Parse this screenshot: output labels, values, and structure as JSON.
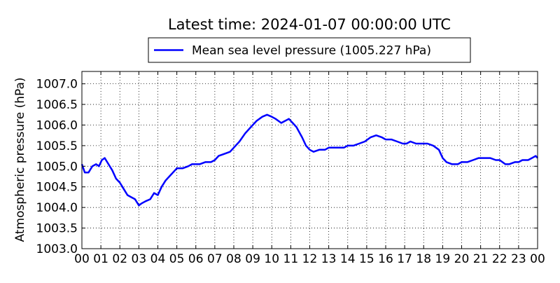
{
  "chart_data": {
    "type": "line",
    "title": "Latest time: 2024-01-07 00:00:00 UTC",
    "xlabel": "",
    "ylabel": "Atmospheric pressure (hPa)",
    "legend": {
      "label": "Mean sea level pressure (1005.227 hPa)",
      "placement": "top-center"
    },
    "grid": true,
    "xlim": [
      0,
      24
    ],
    "ylim": [
      1003.0,
      1007.3
    ],
    "x_ticks": [
      0,
      1,
      2,
      3,
      4,
      5,
      6,
      7,
      8,
      9,
      10,
      11,
      12,
      13,
      14,
      15,
      16,
      17,
      18,
      19,
      20,
      21,
      22,
      23,
      24
    ],
    "x_tick_labels": [
      "00",
      "01",
      "02",
      "03",
      "04",
      "05",
      "06",
      "07",
      "08",
      "09",
      "10",
      "11",
      "12",
      "13",
      "14",
      "15",
      "16",
      "17",
      "18",
      "19",
      "20",
      "21",
      "22",
      "23",
      "00"
    ],
    "y_ticks": [
      1003.0,
      1003.5,
      1004.0,
      1004.5,
      1005.0,
      1005.5,
      1006.0,
      1006.5,
      1007.0
    ],
    "y_tick_labels": [
      "1003.0",
      "1003.5",
      "1004.0",
      "1004.5",
      "1005.0",
      "1005.5",
      "1006.0",
      "1006.5",
      "1007.0"
    ],
    "series": [
      {
        "name": "Mean sea level pressure (1005.227 hPa)",
        "color": "#0000ff",
        "x": [
          0,
          0.15,
          0.35,
          0.55,
          0.75,
          0.9,
          1.05,
          1.2,
          1.4,
          1.6,
          1.8,
          2.0,
          2.2,
          2.4,
          2.6,
          2.8,
          3.0,
          3.15,
          3.35,
          3.6,
          3.8,
          4.0,
          4.2,
          4.4,
          4.6,
          4.8,
          5.0,
          5.3,
          5.6,
          5.8,
          6.0,
          6.2,
          6.5,
          6.8,
          7.0,
          7.2,
          7.5,
          7.8,
          8.0,
          8.3,
          8.6,
          8.9,
          9.2,
          9.5,
          9.75,
          10.0,
          10.2,
          10.5,
          10.7,
          10.9,
          11.1,
          11.3,
          11.6,
          11.8,
          12.0,
          12.2,
          12.5,
          12.8,
          13.0,
          13.2,
          13.5,
          13.8,
          14.0,
          14.3,
          14.6,
          14.9,
          15.2,
          15.5,
          15.8,
          16.0,
          16.3,
          16.6,
          16.9,
          17.1,
          17.3,
          17.6,
          17.9,
          18.2,
          18.5,
          18.8,
          19.0,
          19.2,
          19.5,
          19.8,
          20.0,
          20.3,
          20.6,
          20.9,
          21.2,
          21.5,
          21.8,
          22.0,
          22.3,
          22.5,
          22.8,
          23.0,
          23.2,
          23.5,
          23.7,
          23.9,
          24.0
        ],
        "y": [
          1005.05,
          1004.85,
          1004.85,
          1005.0,
          1005.05,
          1005.0,
          1005.15,
          1005.2,
          1005.05,
          1004.9,
          1004.7,
          1004.6,
          1004.45,
          1004.3,
          1004.25,
          1004.2,
          1004.05,
          1004.1,
          1004.15,
          1004.2,
          1004.35,
          1004.3,
          1004.5,
          1004.65,
          1004.75,
          1004.85,
          1004.95,
          1004.95,
          1005.0,
          1005.05,
          1005.05,
          1005.05,
          1005.1,
          1005.1,
          1005.15,
          1005.25,
          1005.3,
          1005.35,
          1005.45,
          1005.6,
          1005.8,
          1005.95,
          1006.1,
          1006.2,
          1006.25,
          1006.2,
          1006.15,
          1006.05,
          1006.1,
          1006.15,
          1006.05,
          1005.95,
          1005.7,
          1005.5,
          1005.4,
          1005.35,
          1005.4,
          1005.4,
          1005.45,
          1005.45,
          1005.45,
          1005.45,
          1005.5,
          1005.5,
          1005.55,
          1005.6,
          1005.7,
          1005.75,
          1005.7,
          1005.65,
          1005.65,
          1005.6,
          1005.55,
          1005.55,
          1005.6,
          1005.55,
          1005.55,
          1005.55,
          1005.5,
          1005.4,
          1005.2,
          1005.1,
          1005.05,
          1005.05,
          1005.1,
          1005.1,
          1005.15,
          1005.2,
          1005.2,
          1005.2,
          1005.15,
          1005.15,
          1005.05,
          1005.05,
          1005.1,
          1005.1,
          1005.15,
          1005.15,
          1005.2,
          1005.25,
          1005.2
        ]
      }
    ]
  }
}
